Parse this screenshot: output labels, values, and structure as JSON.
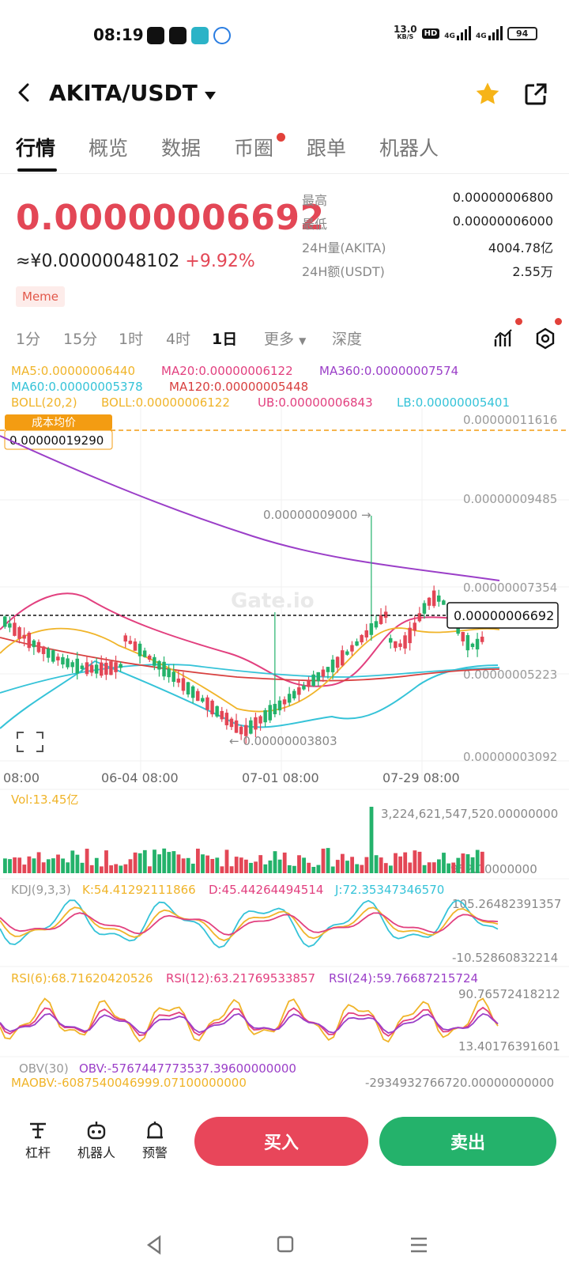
{
  "status": {
    "time": "08:19",
    "net_speed": "13.0",
    "net_unit": "KB/S",
    "hd": "HD",
    "sig1": "4G",
    "sig2": "4G",
    "battery": "94"
  },
  "header": {
    "pair": "AKITA/USDT"
  },
  "tabs": [
    {
      "label": "行情"
    },
    {
      "label": "概览"
    },
    {
      "label": "数据"
    },
    {
      "label": "币圈"
    },
    {
      "label": "跟单"
    },
    {
      "label": "机器人"
    }
  ],
  "price": {
    "last": "0.00000006692",
    "cny_prefix": "≈¥",
    "cny": "0.00000048102",
    "change": "+9.92%",
    "tag": "Meme"
  },
  "stats": [
    {
      "k": "最高",
      "v": "0.00000006800"
    },
    {
      "k": "最低",
      "v": "0.00000006000"
    },
    {
      "k": "24H量(AKITA)",
      "v": "4004.78亿"
    },
    {
      "k": "24H额(USDT)",
      "v": "2.55万"
    }
  ],
  "intervals": {
    "items": [
      "1分",
      "15分",
      "1时",
      "4时",
      "1日",
      "更多",
      "深度"
    ],
    "active": "1日"
  },
  "indicators": {
    "ma5": "MA5:0.00000006440",
    "ma20": "MA20:0.00000006122",
    "ma360": "MA360:0.00000007574",
    "ma60": "MA60:0.00000005378",
    "ma120": "MA120:0.00000005448",
    "boll_label": "BOLL(20,2)",
    "boll": "BOLL:0.00000006122",
    "ub": "UB:0.00000006843",
    "lb": "LB:0.00000005401"
  },
  "cost": {
    "label": "成本均价",
    "value": "0.00000019290"
  },
  "price_axis": [
    "0.00000011616",
    "0.00000009485",
    "0.00000007354",
    "0.00000005223",
    "0.00000003092"
  ],
  "current_price_tag": "0.00000006692",
  "high_note": "0.00000009000 →",
  "low_note": "← 0.00000003803",
  "dates": [
    "08:00",
    "06-04 08:00",
    "07-01 08:00",
    "07-29 08:00"
  ],
  "watermark": "Gate.io",
  "volume": {
    "label": "Vol:13.45亿",
    "max": "3,224,621,547,520.00000000",
    "min": "952.00000000"
  },
  "kdj": {
    "label": "KDJ(9,3,3)",
    "k": "K:54.41292111866",
    "d": "D:45.44264494514",
    "j": "J:72.35347346570",
    "max": "105.26482391357",
    "min": "-10.52860832214"
  },
  "rsi": {
    "r6": "RSI(6):68.71620420526",
    "r12": "RSI(12):63.21769533857",
    "r24": "RSI(24):59.76687215724",
    "max": "90.76572418212",
    "min": "13.40176391601"
  },
  "obv": {
    "label": "OBV(30)",
    "obv": "OBV:-5767447773537.39600000000",
    "maobv": "MAOBV:-6087540046999.07100000000",
    "max": "-2934932766720.00000000000"
  },
  "bottom": {
    "tools": [
      "杠杆",
      "机器人",
      "预警"
    ],
    "buy": "买入",
    "sell": "卖出"
  },
  "colors": {
    "up": "#24b26b",
    "down": "#e34756",
    "ma5": "#f0b429",
    "ma20": "#e2407f",
    "ma360": "#9b3fc8",
    "ma60": "#35c3d8",
    "ma120": "#d8403f"
  }
}
